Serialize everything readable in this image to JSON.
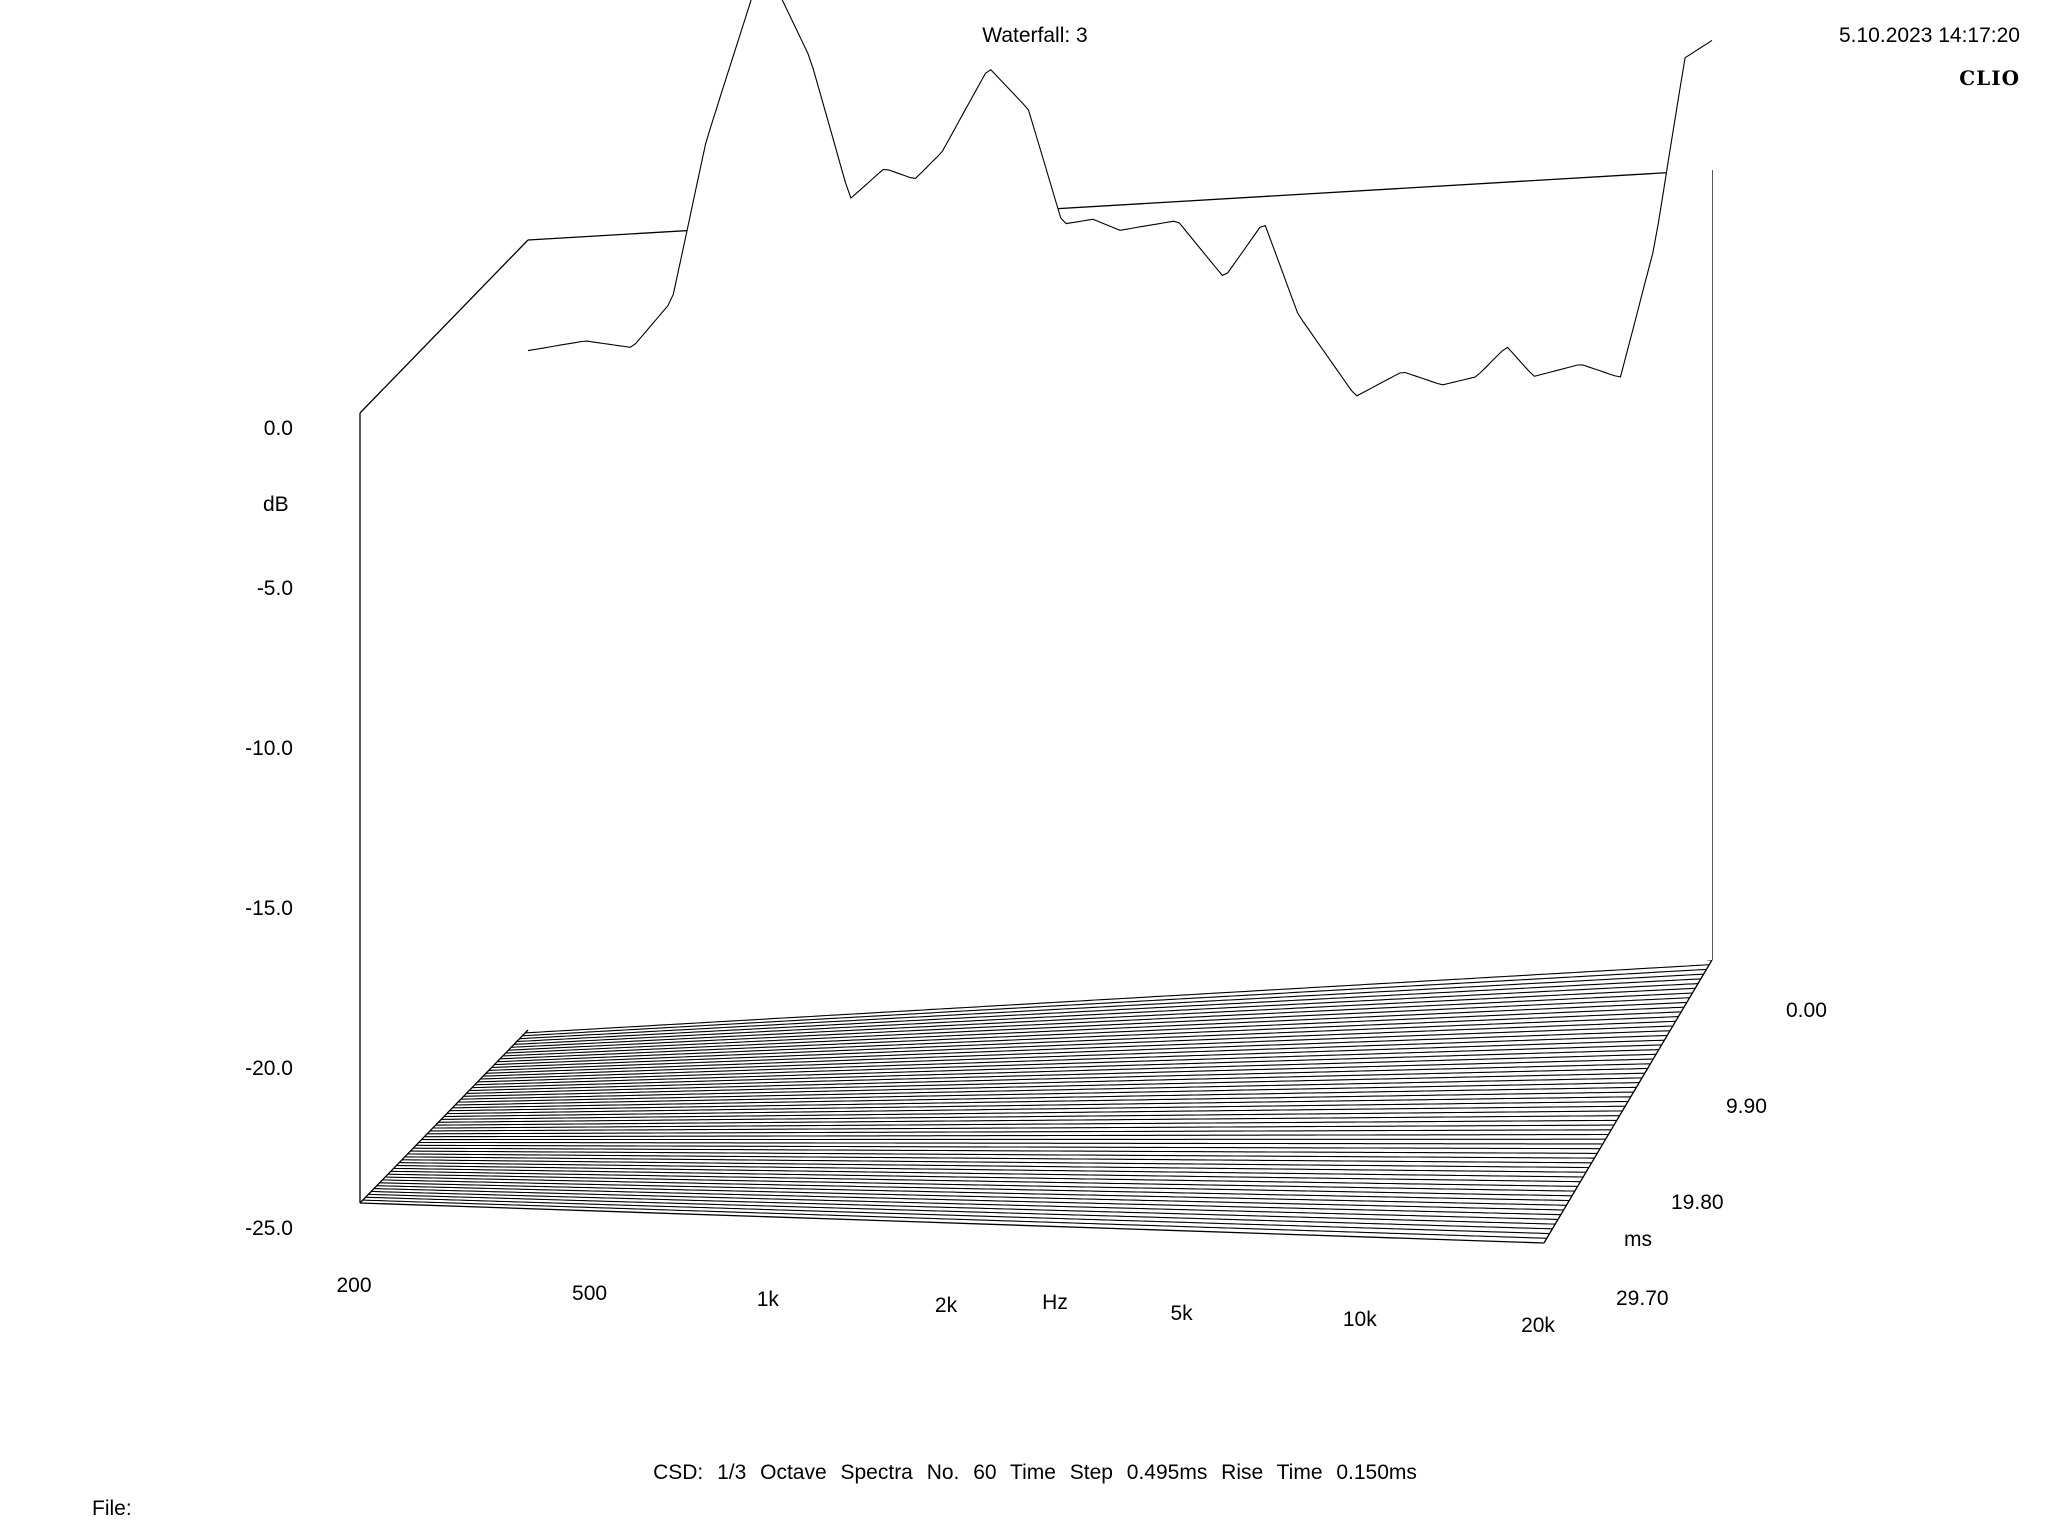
{
  "header": {
    "title": "Waterfall: 3",
    "timestamp": "5.10.2023 14:17:20",
    "brand": "CLIO"
  },
  "footer": {
    "info": "CSD:   1/3 Octave   Spectra No. 60   Time Step 0.495ms   Rise Time 0.150ms",
    "file_label": "File:"
  },
  "colors": {
    "line": "#000000",
    "background": "#ffffff"
  },
  "chart_data": {
    "type": "waterfall",
    "title": "Waterfall: 3",
    "x_axis": {
      "label": "Hz",
      "scale": "log",
      "range": [
        200,
        20000
      ],
      "ticks": [
        {
          "value": 200,
          "label": "200"
        },
        {
          "value": 500,
          "label": "500"
        },
        {
          "value": 1000,
          "label": "1k"
        },
        {
          "value": 2000,
          "label": "2k"
        },
        {
          "value": 5000,
          "label": "5k"
        },
        {
          "value": 10000,
          "label": "10k"
        },
        {
          "value": 20000,
          "label": "20k"
        }
      ]
    },
    "y_axis": {
      "label": "dB",
      "range": [
        -25,
        0
      ],
      "ticks": [
        {
          "value": 0,
          "label": "0.0"
        },
        {
          "value": -5,
          "label": "-5.0"
        },
        {
          "value": -10,
          "label": "-10.0"
        },
        {
          "value": -15,
          "label": "-15.0"
        },
        {
          "value": -20,
          "label": "-20.0"
        },
        {
          "value": -25,
          "label": "-25.0"
        }
      ]
    },
    "z_axis": {
      "label": "ms",
      "range": [
        0,
        29.7
      ],
      "ticks": [
        {
          "value": 0,
          "label": "0.00"
        },
        {
          "value": 9.9,
          "label": "9.90"
        },
        {
          "value": 19.8,
          "label": "19.80"
        },
        {
          "value": 29.7,
          "label": "29.70"
        }
      ]
    },
    "csd": {
      "smoothing": "1/3 Octave",
      "spectra_count": 60,
      "time_step_ms": 0.495,
      "rise_time_ms": 0.15
    },
    "first_spectrum_db": {
      "freq_hz": [
        200,
        250,
        300,
        350,
        400,
        500,
        600,
        700,
        800,
        900,
        1000,
        1200,
        1400,
        1600,
        1800,
        2000,
        2500,
        3000,
        3500,
        4000,
        5000,
        6000,
        7000,
        8000,
        9000,
        10000,
        12000,
        14000,
        16000,
        18000,
        20000
      ],
      "level_db": [
        -3.5,
        -3.3,
        -3.6,
        -2.2,
        2.8,
        8.4,
        5.2,
        0.7,
        1.6,
        1.2,
        2.0,
        4.6,
        3.2,
        -0.5,
        -0.4,
        -0.8,
        -0.6,
        -2.5,
        -0.8,
        -3.8,
        -6.5,
        -5.8,
        -6.3,
        -6.1,
        -5.2,
        -6.2,
        -5.9,
        -6.4,
        -2.3,
        3.6,
        4.1
      ]
    }
  }
}
